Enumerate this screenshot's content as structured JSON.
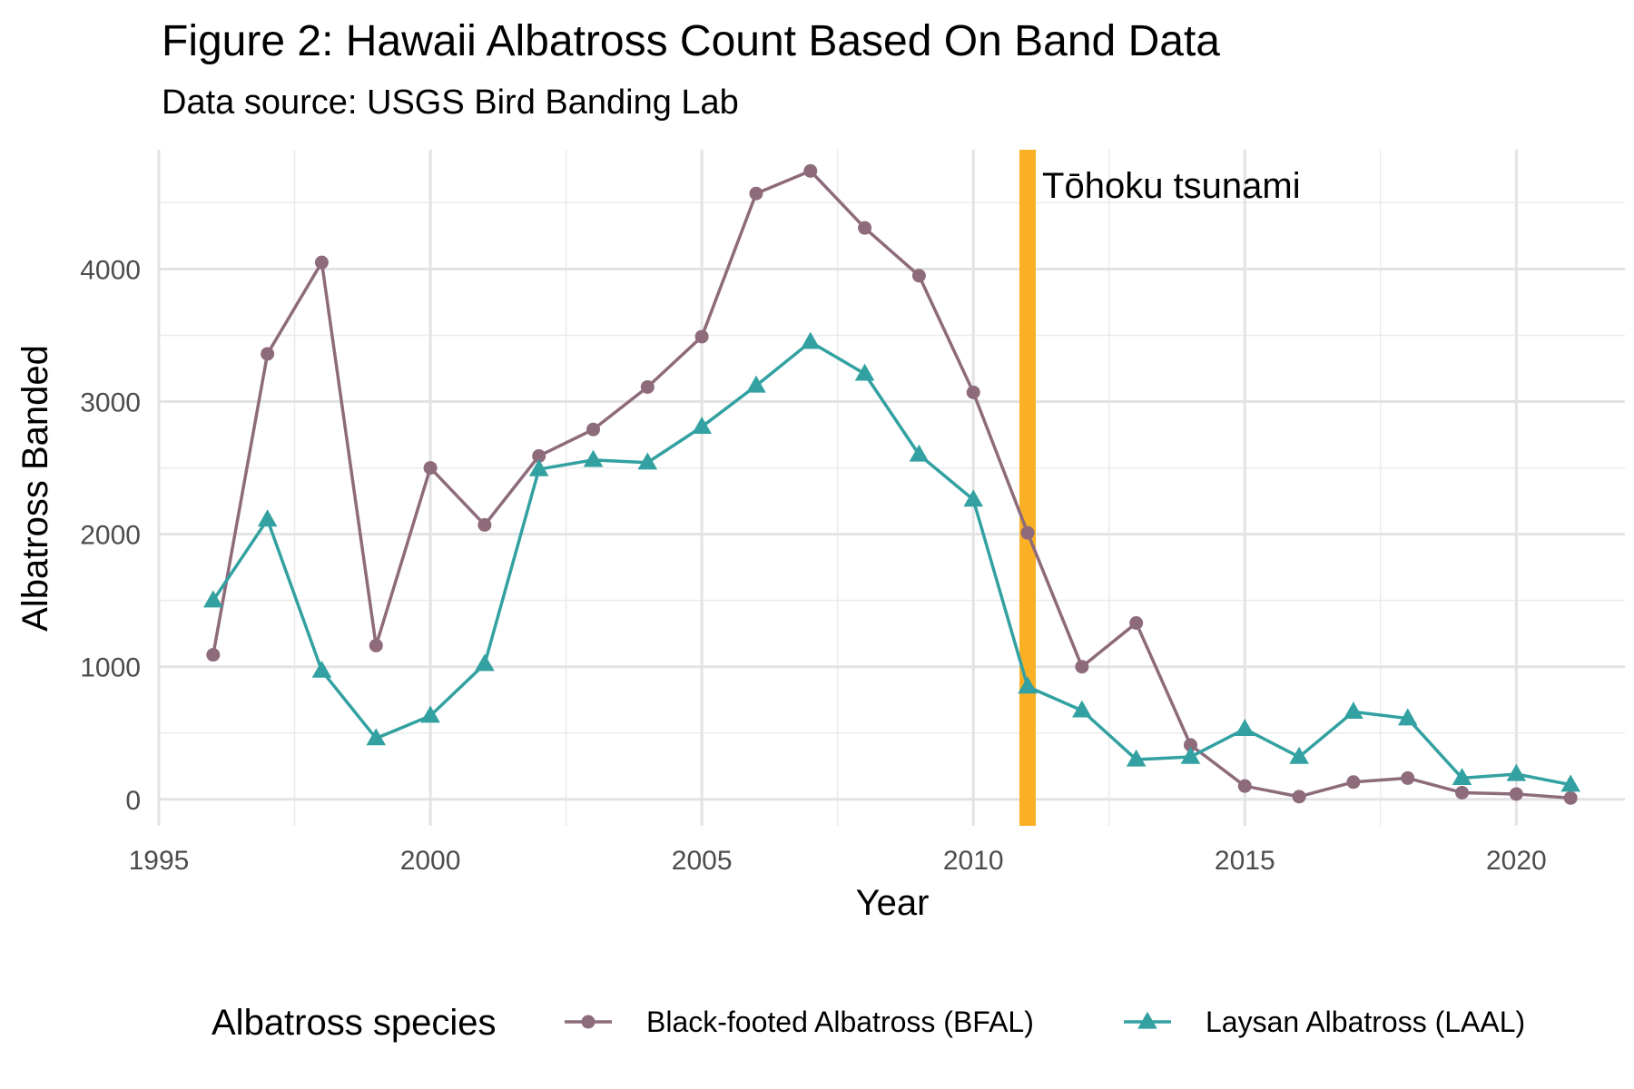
{
  "chart_data": {
    "type": "line",
    "title": "Figure 2: Hawaii Albatross Count Based On Band Data",
    "subtitle": "Data source: USGS Bird Banding Lab",
    "xlabel": "Year",
    "ylabel": "Albatross Banded",
    "xlim": [
      1995,
      2022
    ],
    "ylim": [
      -200,
      4900
    ],
    "x_ticks": [
      1995,
      2000,
      2005,
      2010,
      2015,
      2020
    ],
    "y_ticks": [
      0,
      1000,
      2000,
      3000,
      4000
    ],
    "grid": true,
    "x": [
      1996,
      1997,
      1998,
      1999,
      2000,
      2001,
      2002,
      2003,
      2004,
      2005,
      2006,
      2007,
      2008,
      2009,
      2010,
      2011,
      2012,
      2013,
      2014,
      2015,
      2016,
      2017,
      2018,
      2019,
      2020,
      2021
    ],
    "series": [
      {
        "name": "Black-footed Albatross (BFAL)",
        "color": "#8e6b7b",
        "marker": "circle",
        "values": [
          1090,
          3360,
          4050,
          1160,
          2500,
          2070,
          2590,
          2790,
          3110,
          3490,
          4570,
          4740,
          4310,
          3950,
          3070,
          2010,
          1000,
          1330,
          410,
          100,
          20,
          130,
          160,
          50,
          40,
          10
        ]
      },
      {
        "name": "Laysan Albatross (LAAL)",
        "color": "#33a1a1",
        "marker": "triangle",
        "values": [
          1500,
          2110,
          970,
          460,
          630,
          1020,
          2490,
          2560,
          2540,
          2810,
          3120,
          3450,
          3210,
          2600,
          2260,
          850,
          670,
          300,
          320,
          530,
          320,
          660,
          610,
          160,
          190,
          110
        ]
      }
    ],
    "annotation": {
      "x": 2011,
      "label": "Tōhoku tsunami",
      "color": "#f9b024"
    },
    "legend": {
      "title": "Albatross species",
      "position": "bottom"
    }
  }
}
